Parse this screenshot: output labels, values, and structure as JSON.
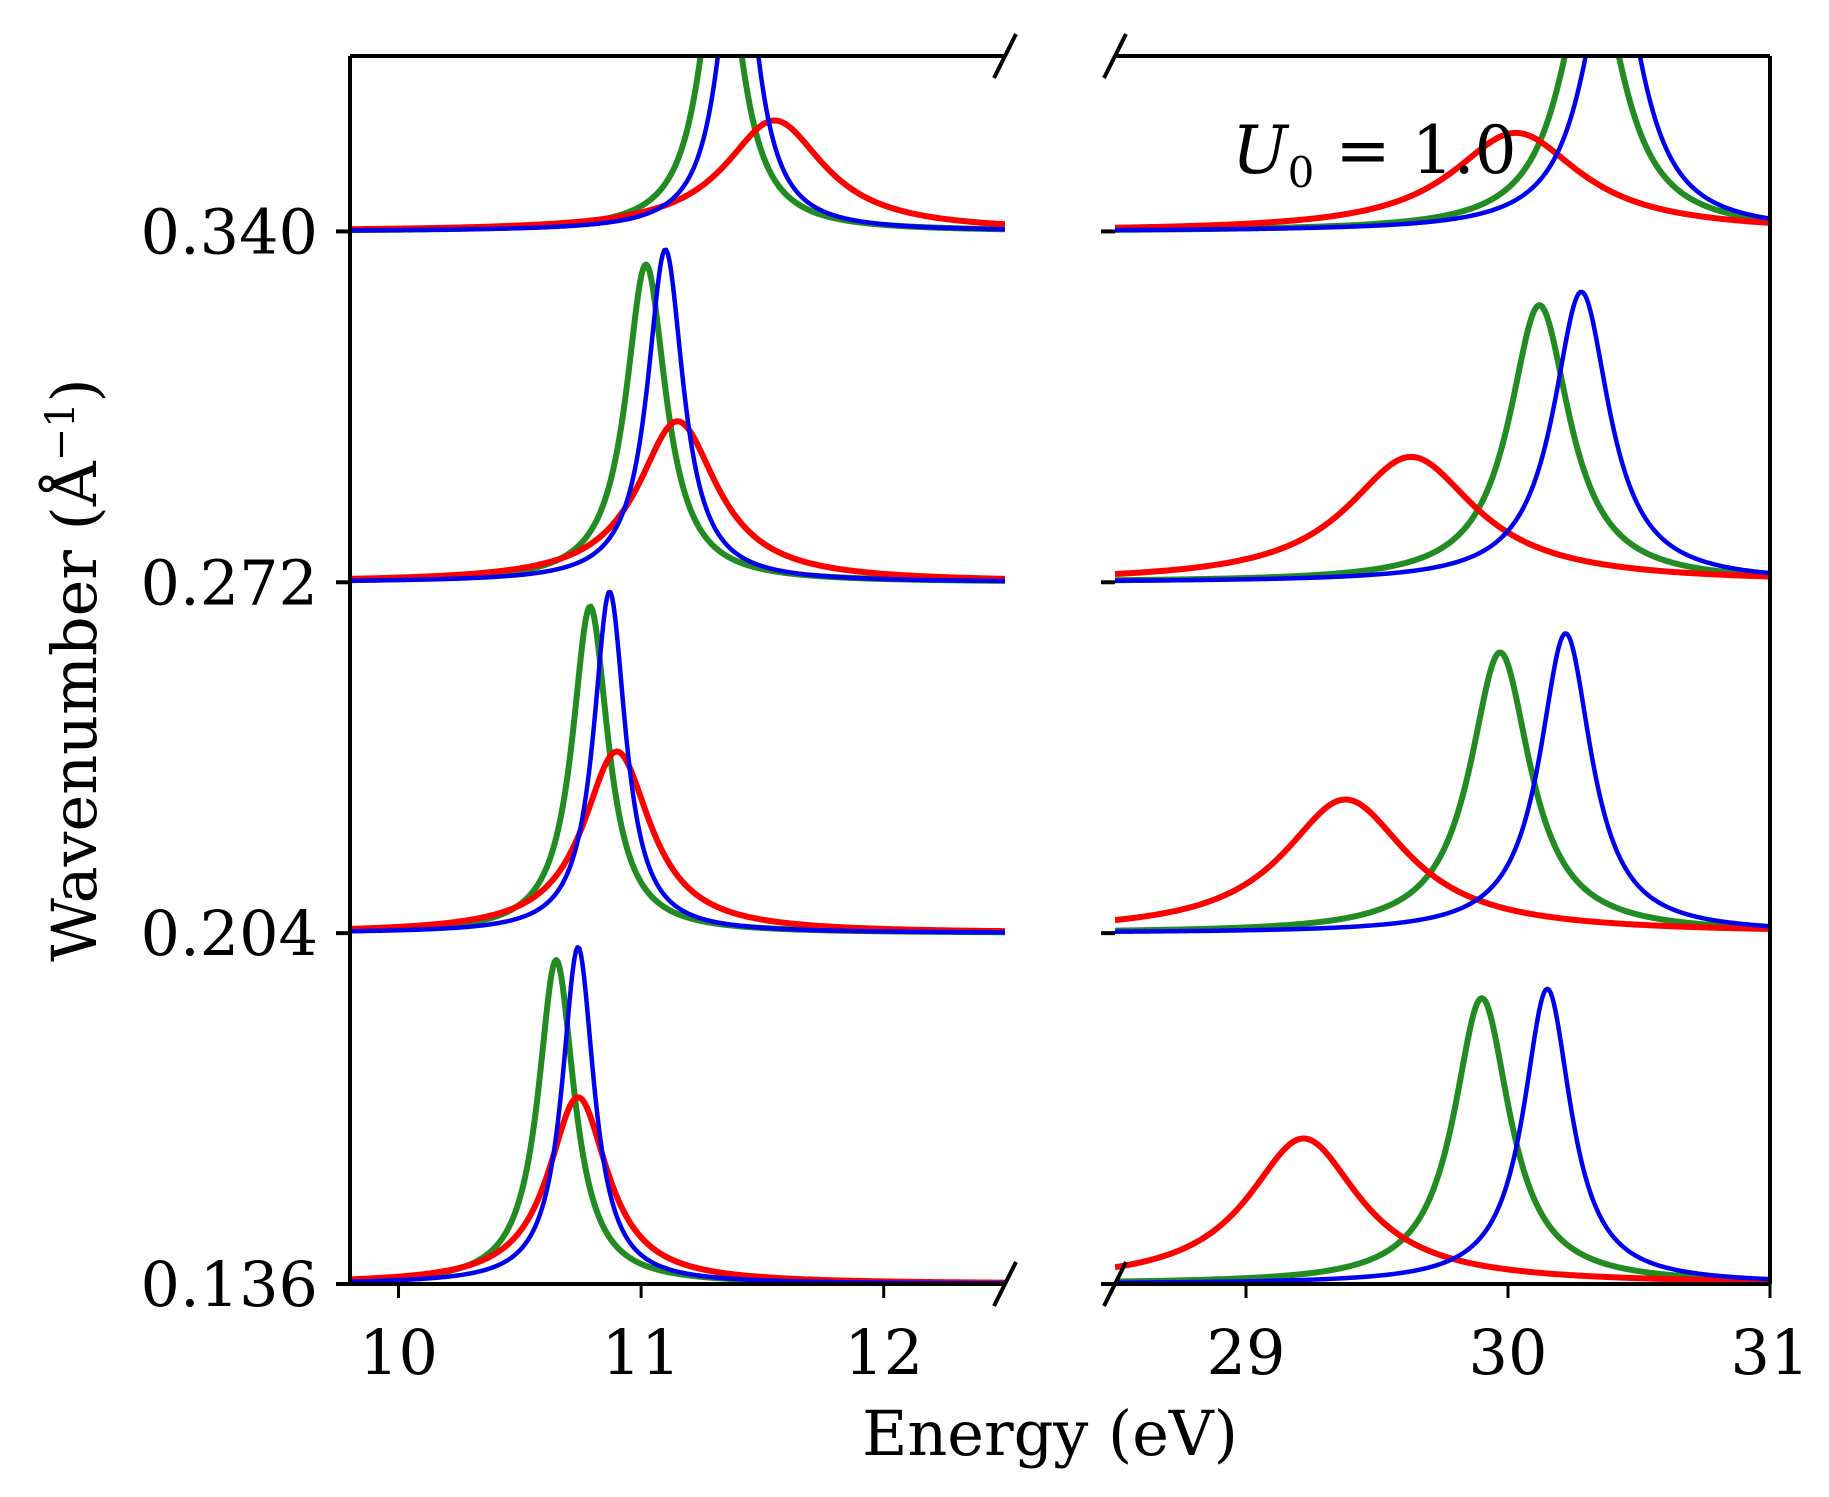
{
  "chart_data": {
    "type": "line",
    "title": "",
    "xlabel": "Energy (eV)",
    "ylabel": "Wavenumber (Å",
    "ylabel_exp": "−1",
    "ylabel_close": ")",
    "annotation": {
      "main": "U",
      "sub": "0",
      "rest": " = 1.0"
    },
    "broken_x_axis": true,
    "panels": [
      {
        "xlim": [
          9.8,
          12.5
        ],
        "xticks": [
          "10",
          "11",
          "12"
        ],
        "xtick_values": [
          10,
          11,
          12
        ]
      },
      {
        "xlim": [
          28.5,
          31.0
        ],
        "xticks": [
          "29",
          "30",
          "31"
        ],
        "xtick_values": [
          29,
          30,
          31
        ]
      }
    ],
    "ylim": [
      0.136,
      0.374
    ],
    "yticks": [
      "0.136",
      "0.204",
      "0.272",
      "0.340"
    ],
    "ytick_values": [
      0.136,
      0.204,
      0.272,
      0.34
    ],
    "grid": false,
    "series_colors": {
      "green": "#228B22",
      "blue": "#0000EE",
      "red": "#FF0000"
    },
    "offset_spectra": [
      {
        "baseline": 0.136,
        "peaks": {
          "green": [
            {
              "x": 10.65,
              "y": 0.1988,
              "width": 0.09
            },
            {
              "x": 29.9,
              "y": 0.1914,
              "width": 0.13
            }
          ],
          "blue": [
            {
              "x": 10.74,
              "y": 0.2013,
              "width": 0.08
            },
            {
              "x": 30.15,
              "y": 0.1932,
              "width": 0.11
            }
          ],
          "red": [
            {
              "x": 10.74,
              "y": 0.1722,
              "width": 0.15
            },
            {
              "x": 29.22,
              "y": 0.1642,
              "width": 0.26
            }
          ]
        }
      },
      {
        "baseline": 0.204,
        "peaks": {
          "green": [
            {
              "x": 10.79,
              "y": 0.2673,
              "width": 0.09
            },
            {
              "x": 29.97,
              "y": 0.2584,
              "width": 0.14
            }
          ],
          "blue": [
            {
              "x": 10.87,
              "y": 0.2702,
              "width": 0.08
            },
            {
              "x": 30.22,
              "y": 0.2621,
              "width": 0.12
            }
          ],
          "red": [
            {
              "x": 10.9,
              "y": 0.2392,
              "width": 0.17
            },
            {
              "x": 29.38,
              "y": 0.2299,
              "width": 0.29
            }
          ]
        }
      },
      {
        "baseline": 0.272,
        "peaks": {
          "green": [
            {
              "x": 11.02,
              "y": 0.3336,
              "width": 0.1
            },
            {
              "x": 30.12,
              "y": 0.3257,
              "width": 0.14
            }
          ],
          "blue": [
            {
              "x": 11.1,
              "y": 0.3365,
              "width": 0.09
            },
            {
              "x": 30.28,
              "y": 0.3283,
              "width": 0.13
            }
          ],
          "red": [
            {
              "x": 11.15,
              "y": 0.3032,
              "width": 0.2
            },
            {
              "x": 29.63,
              "y": 0.2963,
              "width": 0.3
            }
          ]
        }
      },
      {
        "baseline": 0.34,
        "peaks": {
          "green": [
            {
              "x": 11.33,
              "y": 0.3984,
              "width": 0.1
            },
            {
              "x": 30.32,
              "y": 0.3924,
              "width": 0.14
            }
          ],
          "blue": [
            {
              "x": 11.4,
              "y": 0.4032,
              "width": 0.09
            },
            {
              "x": 30.4,
              "y": 0.3955,
              "width": 0.13
            }
          ],
          "red": [
            {
              "x": 11.55,
              "y": 0.3615,
              "width": 0.25
            },
            {
              "x": 30.03,
              "y": 0.3591,
              "width": 0.3
            }
          ]
        }
      }
    ]
  }
}
